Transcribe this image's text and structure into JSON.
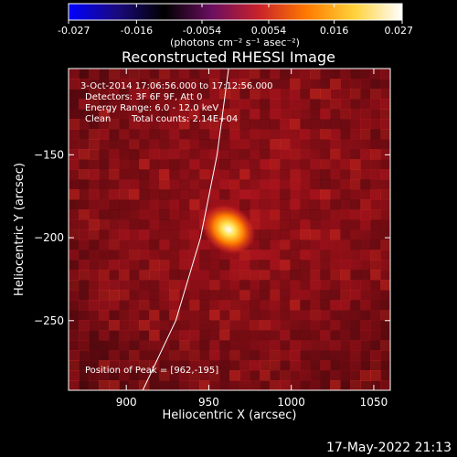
{
  "chart_data": {
    "type": "heatmap",
    "title": "Reconstructed RHESSI Image",
    "xlabel": "Heliocentric X (arcsec)",
    "ylabel": "Heliocentric Y (arcsec)",
    "xlim": [
      865,
      1060
    ],
    "ylim": [
      -292,
      -98
    ],
    "x_ticks": [
      900,
      950,
      1000,
      1050
    ],
    "y_ticks": [
      -150,
      -200,
      -250
    ],
    "colorbar": {
      "range": [
        -0.027,
        0.027
      ],
      "ticks": [
        "-0.027",
        "-0.016",
        "-0.0054",
        "0.0054",
        "0.016",
        "0.027"
      ],
      "unit_label": "(photons cm⁻² s⁻¹ asec⁻²)",
      "colors": [
        "#0000ff",
        "#1a0a80",
        "#000000",
        "#6a0f5f",
        "#c9222a",
        "#ff7a00",
        "#ffd23a",
        "#ffffff"
      ]
    },
    "peak": {
      "x": 962,
      "y": -195,
      "value": 0.027
    },
    "limb": [
      {
        "x": 962,
        "y": -98
      },
      {
        "x": 955,
        "y": -150
      },
      {
        "x": 945,
        "y": -200
      },
      {
        "x": 930,
        "y": -250
      },
      {
        "x": 910,
        "y": -292
      }
    ],
    "annotations": {
      "time": "3-Oct-2014 17:06:56.000 to 17:12:56.000",
      "detectors": "Detectors: 3F 6F 9F, Att 0",
      "energy": "Energy Range: 6.0 - 12.0 keV",
      "method": "Clean",
      "counts": "Total counts: 2.14E+04",
      "peak_label": "Position of Peak = [962,-195]"
    }
  },
  "footer": {
    "timestamp": "17-May-2022 21:13"
  }
}
